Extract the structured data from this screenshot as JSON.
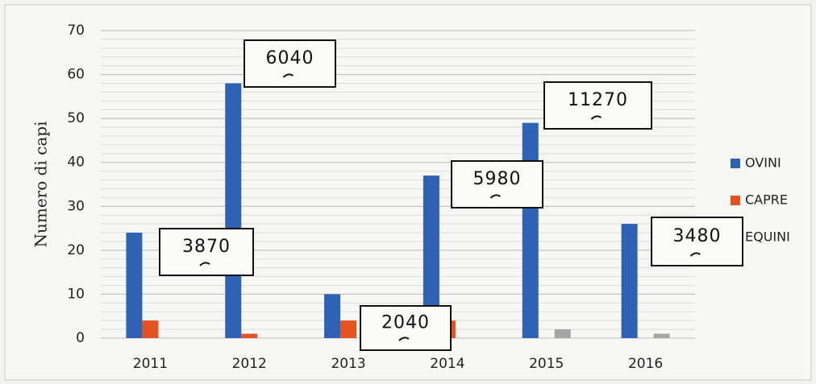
{
  "chart_data": {
    "type": "bar",
    "y_axis_label": "Numero di capi",
    "categories": [
      "2011",
      "2012",
      "2013",
      "2014",
      "2015",
      "2016"
    ],
    "series": [
      {
        "name": "OVINI",
        "color": "#2e62b4",
        "values": [
          24,
          58,
          10,
          37,
          49,
          26
        ]
      },
      {
        "name": "CAPRE",
        "color": "#e4521f",
        "values": [
          4,
          1,
          4,
          4,
          0,
          0
        ]
      },
      {
        "name": "EQUINI",
        "color": "#a5a5a5",
        "values": [
          0,
          0,
          0,
          0,
          2,
          1
        ]
      }
    ],
    "ylim": [
      0,
      70
    ],
    "yticks": [
      0,
      10,
      20,
      30,
      40,
      50,
      60,
      70
    ],
    "grid": true,
    "legend": "right",
    "annotations": [
      "6040",
      "3870",
      "2040",
      "5980",
      "11270",
      "3480"
    ]
  }
}
